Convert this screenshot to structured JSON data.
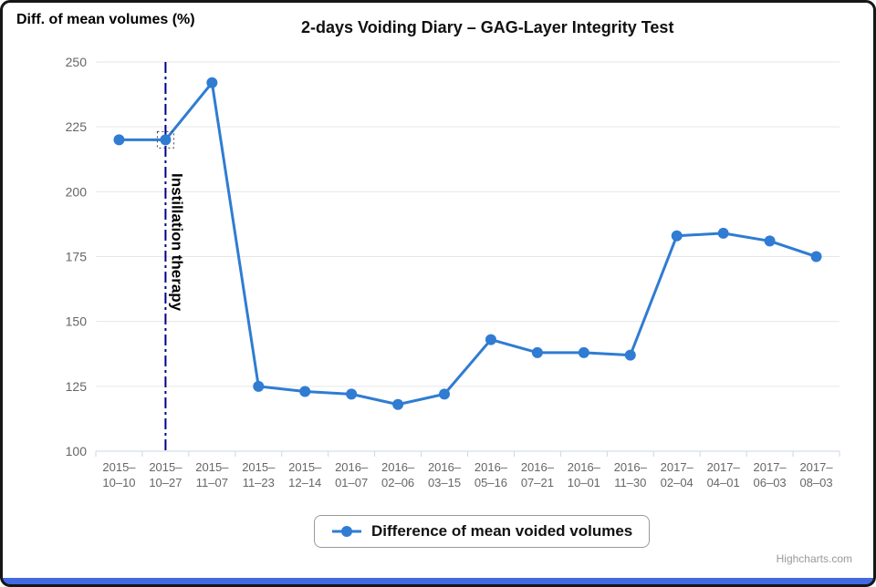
{
  "frame": {
    "border_color": "#161616",
    "bottom_bar_color": "#4169e1"
  },
  "header": {
    "y_axis_title": "Diff. of mean volumes (%)",
    "chart_title": "2-days Voiding Diary – GAG-Layer Integrity Test"
  },
  "chart_data": {
    "type": "line",
    "title": "2-days Voiding Diary – GAG-Layer Integrity Test",
    "ylabel": "Diff. of mean volumes (%)",
    "xlabel": "",
    "ylim": [
      100,
      250
    ],
    "y_ticks": [
      100,
      125,
      150,
      175,
      200,
      225,
      250
    ],
    "grid": true,
    "legend_position": "bottom",
    "categories": [
      "2015–10–10",
      "2015–10–27",
      "2015–11–07",
      "2015–11–23",
      "2015–12–14",
      "2016–01–07",
      "2016–02–06",
      "2016–03–15",
      "2016–05–16",
      "2016–07–21",
      "2016–10–01",
      "2016–11–30",
      "2017–02–04",
      "2017–04–01",
      "2017–06–03",
      "2017–08–03"
    ],
    "series": [
      {
        "name": "Difference of mean voided volumes",
        "color": "#2f7cd2",
        "values": [
          220,
          220,
          242,
          125,
          123,
          122,
          118,
          122,
          143,
          138,
          138,
          137,
          183,
          184,
          181,
          175
        ]
      }
    ],
    "annotation": {
      "label": "Instillation therapy",
      "x_index": 1,
      "line_color": "#00008b",
      "line_style": "dash-dot"
    },
    "selected_point_index": 1,
    "colors": {
      "gridline": "#e6e6e6",
      "axis_line": "#ccd6eb",
      "axis_label": "#666666"
    }
  },
  "legend": {
    "label": "Difference of mean voided volumes"
  },
  "credit": "Highcharts.com"
}
